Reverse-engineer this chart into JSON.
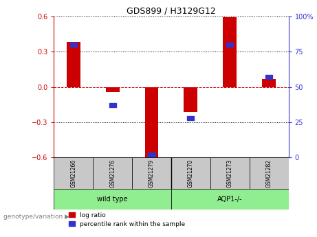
{
  "title": "GDS899 / H3129G12",
  "samples": [
    "GSM21266",
    "GSM21276",
    "GSM21279",
    "GSM21270",
    "GSM21273",
    "GSM21282"
  ],
  "log_ratio": [
    0.385,
    -0.04,
    -0.62,
    -0.21,
    0.595,
    0.07
  ],
  "percentile_rank": [
    80,
    37,
    2,
    28,
    80,
    57
  ],
  "ylim_left": [
    -0.6,
    0.6
  ],
  "ylim_right": [
    0,
    100
  ],
  "yticks_left": [
    -0.6,
    -0.3,
    0,
    0.3,
    0.6
  ],
  "yticks_right": [
    0,
    25,
    50,
    75,
    100
  ],
  "bar_color_red": "#CC0000",
  "bar_color_blue": "#3333CC",
  "grid_color": "black",
  "zero_line_color": "#CC0000",
  "bg_color": "white",
  "plot_bg": "white",
  "group_bg": "#C8C8C8",
  "group_label_bg": "#90EE90",
  "bar_width": 0.35,
  "blue_marker_size": 0.18,
  "legend_red_label": "log ratio",
  "legend_blue_label": "percentile rank within the sample",
  "genotype_label": "genotype/variation",
  "group_info": [
    {
      "label": "wild type",
      "start": 0,
      "end": 2
    },
    {
      "label": "AQP1-/-",
      "start": 3,
      "end": 5
    }
  ]
}
